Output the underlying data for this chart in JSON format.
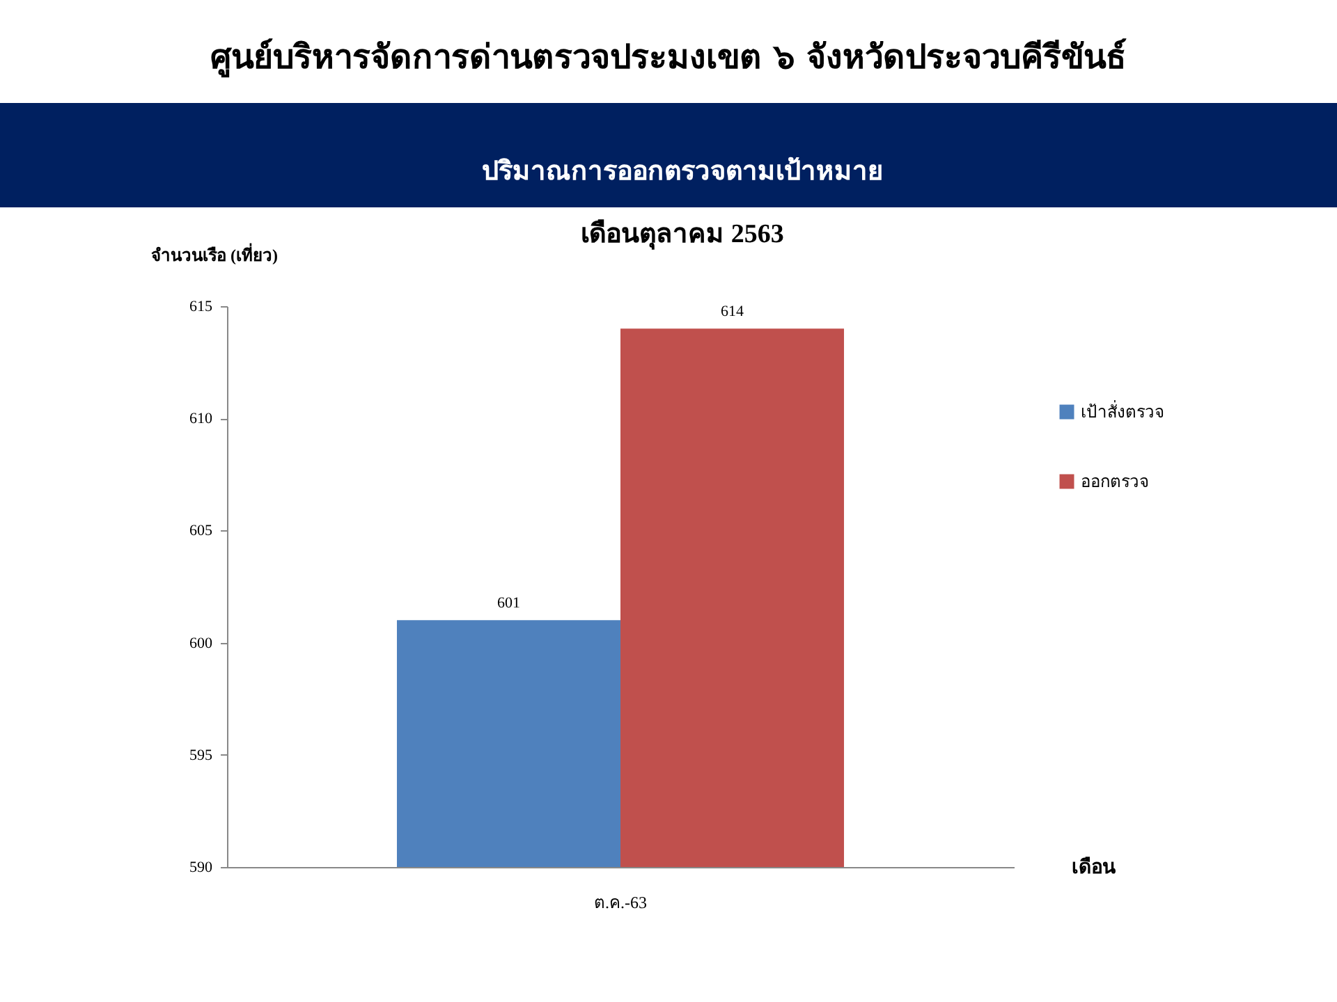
{
  "chart_data": {
    "type": "bar",
    "title": "ศูนย์บริหารจัดการด่านตรวจประมงเขต  ๖ จังหวัดประจวบคีรีขันธ์",
    "subtitle": "ปริมาณการออกตรวจตามเป้าหมาย",
    "annotations": [
      "เดือนตุลาคม 2563"
    ],
    "xlabel": "เดือน",
    "ylabel": "จำนวนเรือ (เที่ยว)",
    "categories": [
      "ต.ค.-63"
    ],
    "series": [
      {
        "name": "เป้าสั่งตรวจ",
        "color": "#4f81bd",
        "values": [
          601
        ]
      },
      {
        "name": "ออกตรวจ",
        "color": "#c0504d",
        "values": [
          614
        ]
      }
    ],
    "ylim": [
      590,
      615
    ],
    "yticks": [
      590,
      595,
      600,
      605,
      610,
      615
    ],
    "grid": false,
    "legend": "right",
    "data_labels": true
  }
}
